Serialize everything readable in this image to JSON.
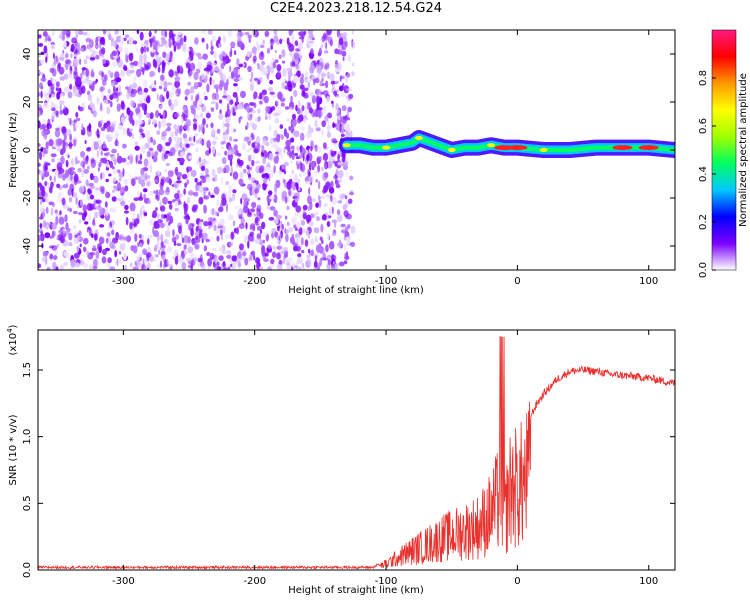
{
  "title": "C2E4.2023.218.12.54.G24",
  "colors": {
    "spectrogram_low": "#7b00ff",
    "line": "#e8302c",
    "axis": "#000000"
  },
  "chart_data": [
    {
      "type": "heatmap",
      "xlabel": "Height of straight line (km)",
      "ylabel": "Frequency (Hz)",
      "xlim": [
        -365,
        120
      ],
      "ylim": [
        -50,
        50
      ],
      "xticks": [
        -300,
        -200,
        -100,
        0,
        100
      ],
      "yticks": [
        -40,
        -20,
        0,
        20,
        40
      ],
      "noise_region_x": [
        -365,
        -125
      ],
      "signal_trace": {
        "x": [
          -130,
          -120,
          -110,
          -100,
          -90,
          -80,
          -75,
          -70,
          -60,
          -50,
          -40,
          -30,
          -20,
          -10,
          0,
          20,
          40,
          60,
          80,
          100,
          120
        ],
        "frequency": [
          2,
          2,
          1,
          1,
          2,
          3,
          5,
          4,
          2,
          0,
          1,
          1,
          2,
          1,
          1,
          0,
          0,
          1,
          1,
          1,
          0
        ]
      },
      "colorbar": {
        "label": "Normalized spectral amplitude",
        "range": [
          0,
          1
        ],
        "ticks": [
          "0.0",
          "0.2",
          "0.4",
          "0.6",
          "0.8"
        ],
        "colors": [
          "#ffffff",
          "#7b00ff",
          "#0000ff",
          "#00c8ff",
          "#00ff60",
          "#a0ff00",
          "#ffff00",
          "#ff9900",
          "#ff0000",
          "#ff1a80"
        ]
      }
    },
    {
      "type": "line",
      "xlabel": "Height of straight line (km)",
      "ylabel": "SNR (10 * v/v)",
      "scale_label": "(x10",
      "scale_exp": "4",
      "scale_close": ")",
      "xlim": [
        -365,
        120
      ],
      "ylim": [
        0,
        1.8
      ],
      "xticks": [
        -300,
        -200,
        -100,
        0,
        100
      ],
      "yticks": [
        "0.0",
        "0.5",
        "1.0",
        "1.5"
      ],
      "series": [
        {
          "x": [
            -365,
            -300,
            -200,
            -110,
            -100,
            -90,
            -80,
            -70,
            -60,
            -50,
            -40,
            -30,
            -20,
            -15,
            -12,
            -10,
            -5,
            0,
            5,
            10,
            15,
            20,
            30,
            40,
            50,
            60,
            70,
            80,
            90,
            100,
            110,
            120
          ],
          "values": [
            0.02,
            0.02,
            0.02,
            0.02,
            0.07,
            0.15,
            0.22,
            0.28,
            0.35,
            0.4,
            0.45,
            0.5,
            0.65,
            0.8,
            0.95,
            0.6,
            0.95,
            0.95,
            1.0,
            1.15,
            1.25,
            1.32,
            1.43,
            1.49,
            1.5,
            1.49,
            1.47,
            1.46,
            1.45,
            1.44,
            1.42,
            1.4
          ]
        }
      ]
    }
  ]
}
